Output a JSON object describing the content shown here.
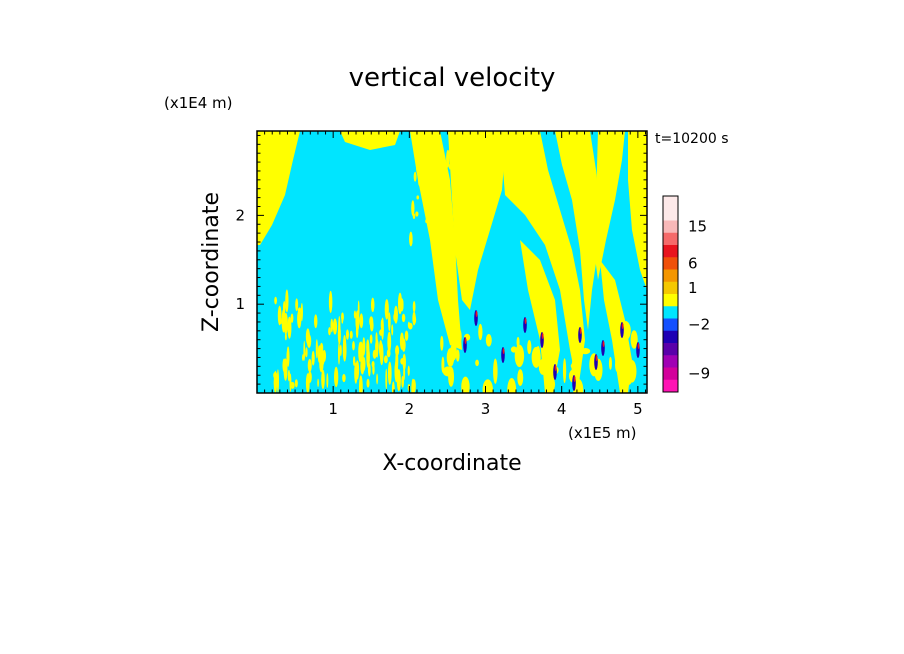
{
  "chart_data": {
    "type": "heatmap",
    "title": "vertical velocity",
    "xlabel": "X-coordinate",
    "ylabel": "Z-coordinate",
    "x_unit": "(x1E5 m)",
    "y_unit": "(x1E4 m)",
    "time_label": "t=10200 s",
    "xlim": [
      0,
      5.12
    ],
    "ylim": [
      0,
      2.95
    ],
    "x_ticks": [
      {
        "v": 1,
        "label": "1"
      },
      {
        "v": 2,
        "label": "2"
      },
      {
        "v": 3,
        "label": "3"
      },
      {
        "v": 4,
        "label": "4"
      },
      {
        "v": 5,
        "label": "5"
      }
    ],
    "y_ticks": [
      {
        "v": 1,
        "label": "1"
      },
      {
        "v": 2,
        "label": "2"
      }
    ],
    "background_color": "#00e5ff",
    "field_color": "#ffff00",
    "grid": false,
    "legend_position": "right",
    "colorbar": {
      "levels": [
        {
          "color": "#fde9e9"
        },
        {
          "color": "#fde9e9"
        },
        {
          "color": "#f8b8b8"
        },
        {
          "color": "#f56a6a"
        },
        {
          "color": "#e8141e"
        },
        {
          "color": "#f0500a"
        },
        {
          "color": "#f49600"
        },
        {
          "color": "#f5c800"
        },
        {
          "color": "#ffff00"
        },
        {
          "color": "#00e5ff"
        },
        {
          "color": "#1450ff"
        },
        {
          "color": "#1e00b4"
        },
        {
          "color": "#5a00aa"
        },
        {
          "color": "#a000b4"
        },
        {
          "color": "#d2009b"
        },
        {
          "color": "#ff14b4"
        }
      ],
      "labels": [
        {
          "text": "15",
          "at": 2.5
        },
        {
          "text": "6",
          "at": 5.5
        },
        {
          "text": "1",
          "at": 7.5
        },
        {
          "text": "−2",
          "at": 10.5
        },
        {
          "text": "−9",
          "at": 14.5
        }
      ]
    }
  }
}
